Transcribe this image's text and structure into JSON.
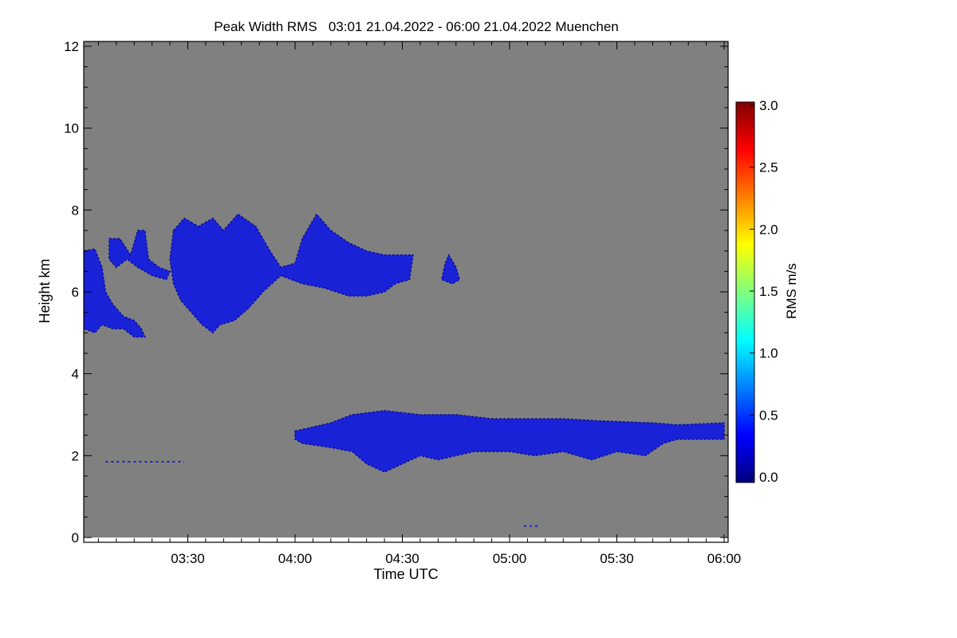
{
  "chart_data": {
    "type": "heatmap",
    "title": "Peak Width RMS   03:01 21.04.2022 - 06:00 21.04.2022 Muenchen",
    "xlabel": "Time UTC",
    "ylabel": "Height km",
    "x_unit": "minutes after 03:00 UTC",
    "xlim": [
      1,
      180
    ],
    "ylim": [
      0,
      12
    ],
    "xticks": [
      {
        "v": 30,
        "label": "03:30"
      },
      {
        "v": 60,
        "label": "04:00"
      },
      {
        "v": 90,
        "label": "04:30"
      },
      {
        "v": 120,
        "label": "05:00"
      },
      {
        "v": 150,
        "label": "05:30"
      },
      {
        "v": 180,
        "label": "06:00"
      }
    ],
    "yticks": [
      {
        "v": 0,
        "label": "0"
      },
      {
        "v": 2,
        "label": "2"
      },
      {
        "v": 4,
        "label": "4"
      },
      {
        "v": 6,
        "label": "6"
      },
      {
        "v": 8,
        "label": "8"
      },
      {
        "v": 10,
        "label": "10"
      },
      {
        "v": 12,
        "label": "12"
      }
    ],
    "background_color": "#808080",
    "colorbar": {
      "label": "RMS m/s",
      "range": [
        0,
        3
      ],
      "ticks": [
        {
          "v": 0,
          "label": "0.0"
        },
        {
          "v": 0.5,
          "label": "0.5"
        },
        {
          "v": 1,
          "label": "1.0"
        },
        {
          "v": 1.5,
          "label": "1.5"
        },
        {
          "v": 2,
          "label": "2.0"
        },
        {
          "v": 2.5,
          "label": "2.5"
        },
        {
          "v": 3,
          "label": "3.0"
        }
      ],
      "colormap": [
        "#00007f",
        "#0000ff",
        "#007fff",
        "#00ffff",
        "#7fff7f",
        "#ffff00",
        "#ff7f00",
        "#ff0000",
        "#7f0000"
      ]
    },
    "regions": [
      {
        "name": "upper-cloud-left",
        "value": 0.3,
        "points": [
          [
            1,
            7.0
          ],
          [
            4,
            7.05
          ],
          [
            6,
            6.6
          ],
          [
            7,
            6.0
          ],
          [
            9,
            5.7
          ],
          [
            12,
            5.4
          ],
          [
            15,
            5.3
          ],
          [
            17,
            5.1
          ],
          [
            18,
            4.9
          ],
          [
            15,
            4.9
          ],
          [
            12,
            5.1
          ],
          [
            9,
            5.1
          ],
          [
            6,
            5.2
          ],
          [
            4,
            5.0
          ],
          [
            1,
            5.1
          ]
        ]
      },
      {
        "name": "upper-cloud-b",
        "value": 0.3,
        "points": [
          [
            8,
            7.3
          ],
          [
            11,
            7.3
          ],
          [
            14,
            6.9
          ],
          [
            16,
            7.5
          ],
          [
            18,
            7.5
          ],
          [
            19,
            6.8
          ],
          [
            22,
            6.6
          ],
          [
            25,
            6.5
          ],
          [
            24,
            6.3
          ],
          [
            20,
            6.4
          ],
          [
            16,
            6.6
          ],
          [
            13,
            6.8
          ],
          [
            10,
            6.6
          ],
          [
            8,
            6.8
          ]
        ]
      },
      {
        "name": "upper-cloud-main",
        "value": 0.35,
        "points": [
          [
            26,
            7.5
          ],
          [
            29,
            7.8
          ],
          [
            33,
            7.6
          ],
          [
            37,
            7.8
          ],
          [
            40,
            7.5
          ],
          [
            44,
            7.9
          ],
          [
            49,
            7.6
          ],
          [
            53,
            7.0
          ],
          [
            56,
            6.6
          ],
          [
            60,
            6.7
          ],
          [
            62,
            7.3
          ],
          [
            66,
            7.9
          ],
          [
            70,
            7.5
          ],
          [
            75,
            7.2
          ],
          [
            80,
            7.0
          ],
          [
            85,
            6.9
          ],
          [
            93,
            6.9
          ],
          [
            92,
            6.3
          ],
          [
            88,
            6.2
          ],
          [
            85,
            6.0
          ],
          [
            80,
            5.9
          ],
          [
            75,
            5.9
          ],
          [
            68,
            6.1
          ],
          [
            62,
            6.2
          ],
          [
            56,
            6.4
          ],
          [
            51,
            6.0
          ],
          [
            47,
            5.6
          ],
          [
            43,
            5.3
          ],
          [
            39,
            5.2
          ],
          [
            37,
            5.0
          ],
          [
            34,
            5.2
          ],
          [
            31,
            5.5
          ],
          [
            28,
            5.8
          ],
          [
            26,
            6.2
          ],
          [
            25,
            6.8
          ]
        ]
      },
      {
        "name": "upper-cloud-small",
        "value": 0.3,
        "points": [
          [
            103,
            6.9
          ],
          [
            105,
            6.6
          ],
          [
            106,
            6.3
          ],
          [
            104,
            6.2
          ],
          [
            101,
            6.3
          ],
          [
            102,
            6.7
          ]
        ]
      },
      {
        "name": "lower-cloud-layer",
        "value": 0.35,
        "points": [
          [
            60,
            2.6
          ],
          [
            70,
            2.8
          ],
          [
            76,
            3.0
          ],
          [
            85,
            3.1
          ],
          [
            95,
            3.0
          ],
          [
            105,
            3.0
          ],
          [
            115,
            2.9
          ],
          [
            125,
            2.9
          ],
          [
            135,
            2.9
          ],
          [
            145,
            2.85
          ],
          [
            160,
            2.8
          ],
          [
            167,
            2.75
          ],
          [
            180,
            2.8
          ],
          [
            180,
            2.4
          ],
          [
            167,
            2.4
          ],
          [
            163,
            2.3
          ],
          [
            158,
            2.0
          ],
          [
            150,
            2.1
          ],
          [
            143,
            1.9
          ],
          [
            135,
            2.1
          ],
          [
            127,
            2.0
          ],
          [
            120,
            2.1
          ],
          [
            110,
            2.1
          ],
          [
            100,
            1.9
          ],
          [
            95,
            2.0
          ],
          [
            90,
            1.8
          ],
          [
            85,
            1.6
          ],
          [
            80,
            1.8
          ],
          [
            76,
            2.1
          ],
          [
            70,
            2.2
          ],
          [
            62,
            2.3
          ],
          [
            60,
            2.4
          ]
        ]
      }
    ],
    "speckle_lines": [
      {
        "x": [
          7,
          29
        ],
        "y": 1.85,
        "value": 0.3
      },
      {
        "x": [
          124,
          128
        ],
        "y": 0.28,
        "value": 0.2
      }
    ]
  }
}
